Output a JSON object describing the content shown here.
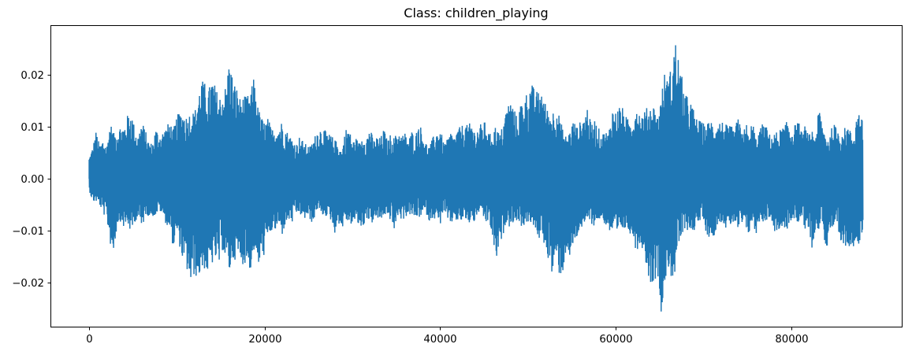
{
  "chart_data": {
    "type": "line",
    "title": "Class: children_playing",
    "xlabel": "",
    "ylabel": "",
    "xlim": [
      -4410,
      92610
    ],
    "ylim": [
      -0.0285,
      0.0296
    ],
    "xticks": [
      0,
      20000,
      40000,
      60000,
      80000
    ],
    "xtick_labels": [
      "0",
      "20000",
      "40000",
      "60000",
      "80000"
    ],
    "yticks": [
      -0.02,
      -0.01,
      0.0,
      0.01,
      0.02
    ],
    "ytick_labels": [
      "−0.02",
      "−0.01",
      "0.00",
      "0.01",
      "0.02"
    ],
    "grid": false,
    "legend": "none",
    "series": [
      {
        "color": "#1f77b4",
        "sample_count": 88200,
        "envelope_step": 400,
        "x_start": 0,
        "max": [
          0.0042,
          0.0061,
          0.0093,
          0.0064,
          0.0078,
          0.0062,
          0.011,
          0.0088,
          0.0095,
          0.0104,
          0.0102,
          0.0124,
          0.0131,
          0.0098,
          0.0084,
          0.0112,
          0.0094,
          0.0072,
          0.0068,
          0.0098,
          0.0086,
          0.0092,
          0.0101,
          0.0112,
          0.0095,
          0.0122,
          0.0131,
          0.0128,
          0.0119,
          0.0133,
          0.0128,
          0.016,
          0.0192,
          0.0185,
          0.0171,
          0.0197,
          0.0178,
          0.0158,
          0.0168,
          0.0181,
          0.0235,
          0.0191,
          0.0178,
          0.0156,
          0.0158,
          0.0161,
          0.0163,
          0.0202,
          0.0142,
          0.0121,
          0.0109,
          0.0118,
          0.0095,
          0.0102,
          0.0102,
          0.0112,
          0.0097,
          0.0085,
          0.0078,
          0.0066,
          0.0083,
          0.0072,
          0.0065,
          0.0063,
          0.0077,
          0.0095,
          0.0099,
          0.0095,
          0.0088,
          0.0084,
          0.0075,
          0.0071,
          0.0052,
          0.0096,
          0.0099,
          0.0072,
          0.008,
          0.0068,
          0.0087,
          0.0079,
          0.0102,
          0.0074,
          0.0082,
          0.0079,
          0.0097,
          0.0073,
          0.0088,
          0.0079,
          0.0096,
          0.0084,
          0.0089,
          0.0076,
          0.0093,
          0.0083,
          0.0112,
          0.0089,
          0.007,
          0.0062,
          0.0081,
          0.0091,
          0.01,
          0.0069,
          0.0075,
          0.0091,
          0.0082,
          0.0095,
          0.0103,
          0.0106,
          0.0103,
          0.0112,
          0.009,
          0.0102,
          0.0108,
          0.0111,
          0.0085,
          0.0093,
          0.0105,
          0.0084,
          0.0108,
          0.014,
          0.0152,
          0.0139,
          0.0117,
          0.0148,
          0.0158,
          0.0171,
          0.0187,
          0.017,
          0.0168,
          0.0176,
          0.0146,
          0.0129,
          0.013,
          0.0142,
          0.0122,
          0.0095,
          0.0081,
          0.0093,
          0.0115,
          0.0099,
          0.0111,
          0.012,
          0.0141,
          0.0105,
          0.0115,
          0.0101,
          0.0085,
          0.0093,
          0.0088,
          0.0138,
          0.0129,
          0.0143,
          0.0137,
          0.0121,
          0.011,
          0.0122,
          0.0146,
          0.0126,
          0.0128,
          0.0138,
          0.0143,
          0.0142,
          0.012,
          0.0164,
          0.0205,
          0.0191,
          0.0221,
          0.027,
          0.0232,
          0.0194,
          0.0162,
          0.0157,
          0.0139,
          0.0118,
          0.0112,
          0.0108,
          0.0104,
          0.0119,
          0.0103,
          0.0111,
          0.0113,
          0.0109,
          0.0101,
          0.0102,
          0.0092,
          0.0127,
          0.0079,
          0.012,
          0.0076,
          0.0117,
          0.0078,
          0.0093,
          0.0108,
          0.0101,
          0.0085,
          0.0087,
          0.0091,
          0.0096,
          0.0101,
          0.0113,
          0.0099,
          0.0103,
          0.0115,
          0.009,
          0.0103,
          0.0083,
          0.0096,
          0.0083,
          0.0138,
          0.0107,
          0.0083,
          0.0082,
          0.0109,
          0.0098,
          0.0093,
          0.0096,
          0.0104,
          0.0092,
          0.0087,
          0.0138,
          0.0115
        ],
        "min": [
          -0.0022,
          -0.0045,
          -0.0044,
          -0.0051,
          -0.0068,
          -0.0077,
          -0.0126,
          -0.0144,
          -0.0088,
          -0.0082,
          -0.0096,
          -0.0089,
          -0.0107,
          -0.0084,
          -0.0074,
          -0.0101,
          -0.0069,
          -0.0072,
          -0.0073,
          -0.0071,
          -0.0061,
          -0.0072,
          -0.0089,
          -0.0098,
          -0.0135,
          -0.0105,
          -0.0137,
          -0.0169,
          -0.018,
          -0.0206,
          -0.0185,
          -0.0194,
          -0.0179,
          -0.0174,
          -0.0187,
          -0.0166,
          -0.0157,
          -0.017,
          -0.0137,
          -0.016,
          -0.0182,
          -0.0157,
          -0.0155,
          -0.0157,
          -0.0167,
          -0.0159,
          -0.0179,
          -0.0138,
          -0.0172,
          -0.0161,
          -0.0145,
          -0.0116,
          -0.0102,
          -0.0102,
          -0.0091,
          -0.0109,
          -0.0087,
          -0.0081,
          -0.0086,
          -0.007,
          -0.0066,
          -0.0084,
          -0.0071,
          -0.0084,
          -0.0084,
          -0.0058,
          -0.0073,
          -0.007,
          -0.0075,
          -0.0081,
          -0.0105,
          -0.0084,
          -0.0099,
          -0.008,
          -0.0086,
          -0.0089,
          -0.0081,
          -0.0094,
          -0.0096,
          -0.0075,
          -0.0085,
          -0.0086,
          -0.0075,
          -0.0087,
          -0.0068,
          -0.008,
          -0.0078,
          -0.0104,
          -0.0071,
          -0.008,
          -0.0076,
          -0.0068,
          -0.0073,
          -0.0077,
          -0.0075,
          -0.0071,
          -0.0066,
          -0.0084,
          -0.0074,
          -0.0082,
          -0.009,
          -0.006,
          -0.0082,
          -0.0093,
          -0.0074,
          -0.0086,
          -0.0083,
          -0.0076,
          -0.0091,
          -0.0078,
          -0.0087,
          -0.0065,
          -0.0072,
          -0.0088,
          -0.008,
          -0.0121,
          -0.0158,
          -0.0133,
          -0.0108,
          -0.0079,
          -0.0097,
          -0.0081,
          -0.0082,
          -0.0092,
          -0.009,
          -0.0086,
          -0.0085,
          -0.01,
          -0.0123,
          -0.0095,
          -0.0146,
          -0.0155,
          -0.0191,
          -0.0157,
          -0.0186,
          -0.0185,
          -0.0132,
          -0.0162,
          -0.0127,
          -0.0115,
          -0.0092,
          -0.0103,
          -0.008,
          -0.0085,
          -0.0093,
          -0.0079,
          -0.0081,
          -0.0088,
          -0.0101,
          -0.0109,
          -0.0115,
          -0.0108,
          -0.0099,
          -0.0098,
          -0.0104,
          -0.0115,
          -0.0143,
          -0.0124,
          -0.014,
          -0.0177,
          -0.0205,
          -0.0197,
          -0.0187,
          -0.0256,
          -0.0209,
          -0.0171,
          -0.0193,
          -0.0186,
          -0.0129,
          -0.0111,
          -0.0107,
          -0.0093,
          -0.011,
          -0.0086,
          -0.0087,
          -0.0073,
          -0.0112,
          -0.0113,
          -0.0113,
          -0.0088,
          -0.0084,
          -0.0087,
          -0.0108,
          -0.0087,
          -0.0085,
          -0.0105,
          -0.0089,
          -0.0105,
          -0.0107,
          -0.0084,
          -0.0111,
          -0.0083,
          -0.0085,
          -0.008,
          -0.0075,
          -0.0102,
          -0.0102,
          -0.01,
          -0.0103,
          -0.0097,
          -0.0087,
          -0.0078,
          -0.0086,
          -0.007,
          -0.0098,
          -0.0097,
          -0.0134,
          -0.0094,
          -0.0103,
          -0.0082,
          -0.015,
          -0.0097,
          -0.0117,
          -0.0088,
          -0.013
        ]
      }
    ]
  }
}
